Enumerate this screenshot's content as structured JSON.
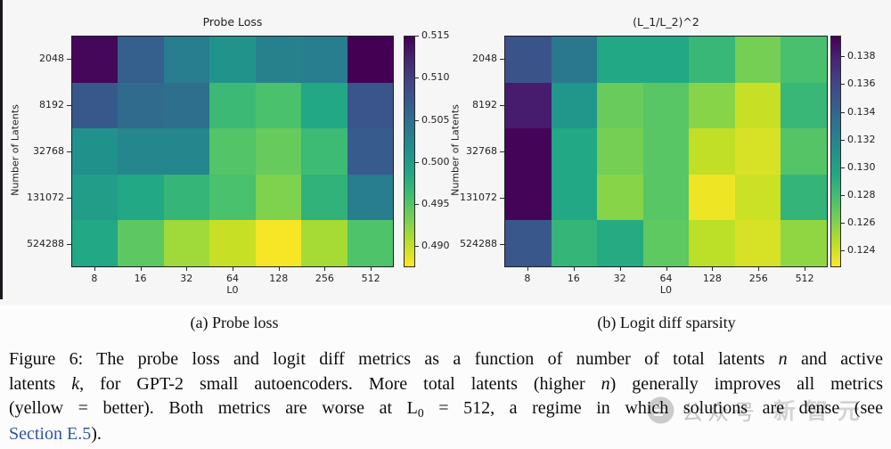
{
  "captions": {
    "sub_a": "(a) Probe loss",
    "sub_b": "(b) Logit diff sparsity",
    "figure_lines": [
      [
        {
          "t": "Figure 6: The probe loss and logit diff metrics as a function of number of total latents "
        },
        {
          "t": "n",
          "style": "math"
        },
        {
          "t": " and active"
        }
      ],
      [
        {
          "t": "latents "
        },
        {
          "t": "k",
          "style": "math"
        },
        {
          "t": ", for GPT-2 small autoencoders. More total latents (higher "
        },
        {
          "t": "n",
          "style": "math"
        },
        {
          "t": ") generally improves all metrics"
        }
      ],
      [
        {
          "t": "(yellow = better). Both metrics are worse at L"
        },
        {
          "t": "0",
          "style": "sub"
        },
        {
          "t": " = 512, a regime in which solutions are dense (see"
        }
      ],
      [
        {
          "t": "Section E.5",
          "style": "link"
        },
        {
          "t": ")."
        }
      ]
    ]
  },
  "watermark": {
    "icon": "wechat-chat-bubble-icon",
    "prefix": "公众号",
    "brand": "新智元"
  },
  "colors": {
    "link_blue": "#3453a6",
    "colormap_low": "#fde725",
    "colormap_high": "#440154"
  },
  "chart_data": [
    {
      "type": "heatmap",
      "title": "Probe Loss",
      "xlabel": "L0",
      "ylabel": "Number of Latents",
      "x_ticks": [
        "8",
        "16",
        "32",
        "64",
        "128",
        "256",
        "512"
      ],
      "y_ticks": [
        "2048",
        "8192",
        "32768",
        "131072",
        "524288"
      ],
      "colormap": "viridis_r",
      "vmin": 0.4875,
      "vmax": 0.515,
      "colorbar_ticks": [
        0.515,
        0.51,
        0.505,
        0.5,
        0.495,
        0.49
      ],
      "values": [
        [
          0.5145,
          0.5068,
          0.5035,
          0.501,
          0.503,
          0.5035,
          0.515
        ],
        [
          0.5075,
          0.5055,
          0.505,
          0.4965,
          0.4955,
          0.4985,
          0.5078
        ],
        [
          0.5013,
          0.5025,
          0.5025,
          0.495,
          0.494,
          0.4963,
          0.5072
        ],
        [
          0.4998,
          0.4985,
          0.4969,
          0.4955,
          0.4928,
          0.4973,
          0.5035
        ],
        [
          0.4985,
          0.4945,
          0.4915,
          0.4898,
          0.4878,
          0.4912,
          0.4952
        ]
      ]
    },
    {
      "type": "heatmap",
      "title": "(L_1/L_2)^2",
      "xlabel": "L0",
      "ylabel": "Number of Latents",
      "x_ticks": [
        "8",
        "16",
        "32",
        "64",
        "128",
        "256",
        "512"
      ],
      "y_ticks": [
        "2048",
        "8192",
        "32768",
        "131072",
        "524288"
      ],
      "colormap": "viridis_r",
      "vmin": 0.1228,
      "vmax": 0.1395,
      "colorbar_ticks": [
        0.138,
        0.136,
        0.134,
        0.132,
        0.13,
        0.128,
        0.126,
        0.124
      ],
      "values": [
        [
          0.1352,
          0.1328,
          0.1295,
          0.1295,
          0.1284,
          0.1263,
          0.1277
        ],
        [
          0.1382,
          0.1308,
          0.1267,
          0.1272,
          0.1258,
          0.1242,
          0.1284
        ],
        [
          0.1393,
          0.1295,
          0.1263,
          0.1272,
          0.1244,
          0.1238,
          0.1273
        ],
        [
          0.1393,
          0.1295,
          0.1258,
          0.1272,
          0.1232,
          0.1241,
          0.1286
        ],
        [
          0.135,
          0.1285,
          0.1293,
          0.127,
          0.1245,
          0.1238,
          0.1256
        ]
      ]
    }
  ]
}
